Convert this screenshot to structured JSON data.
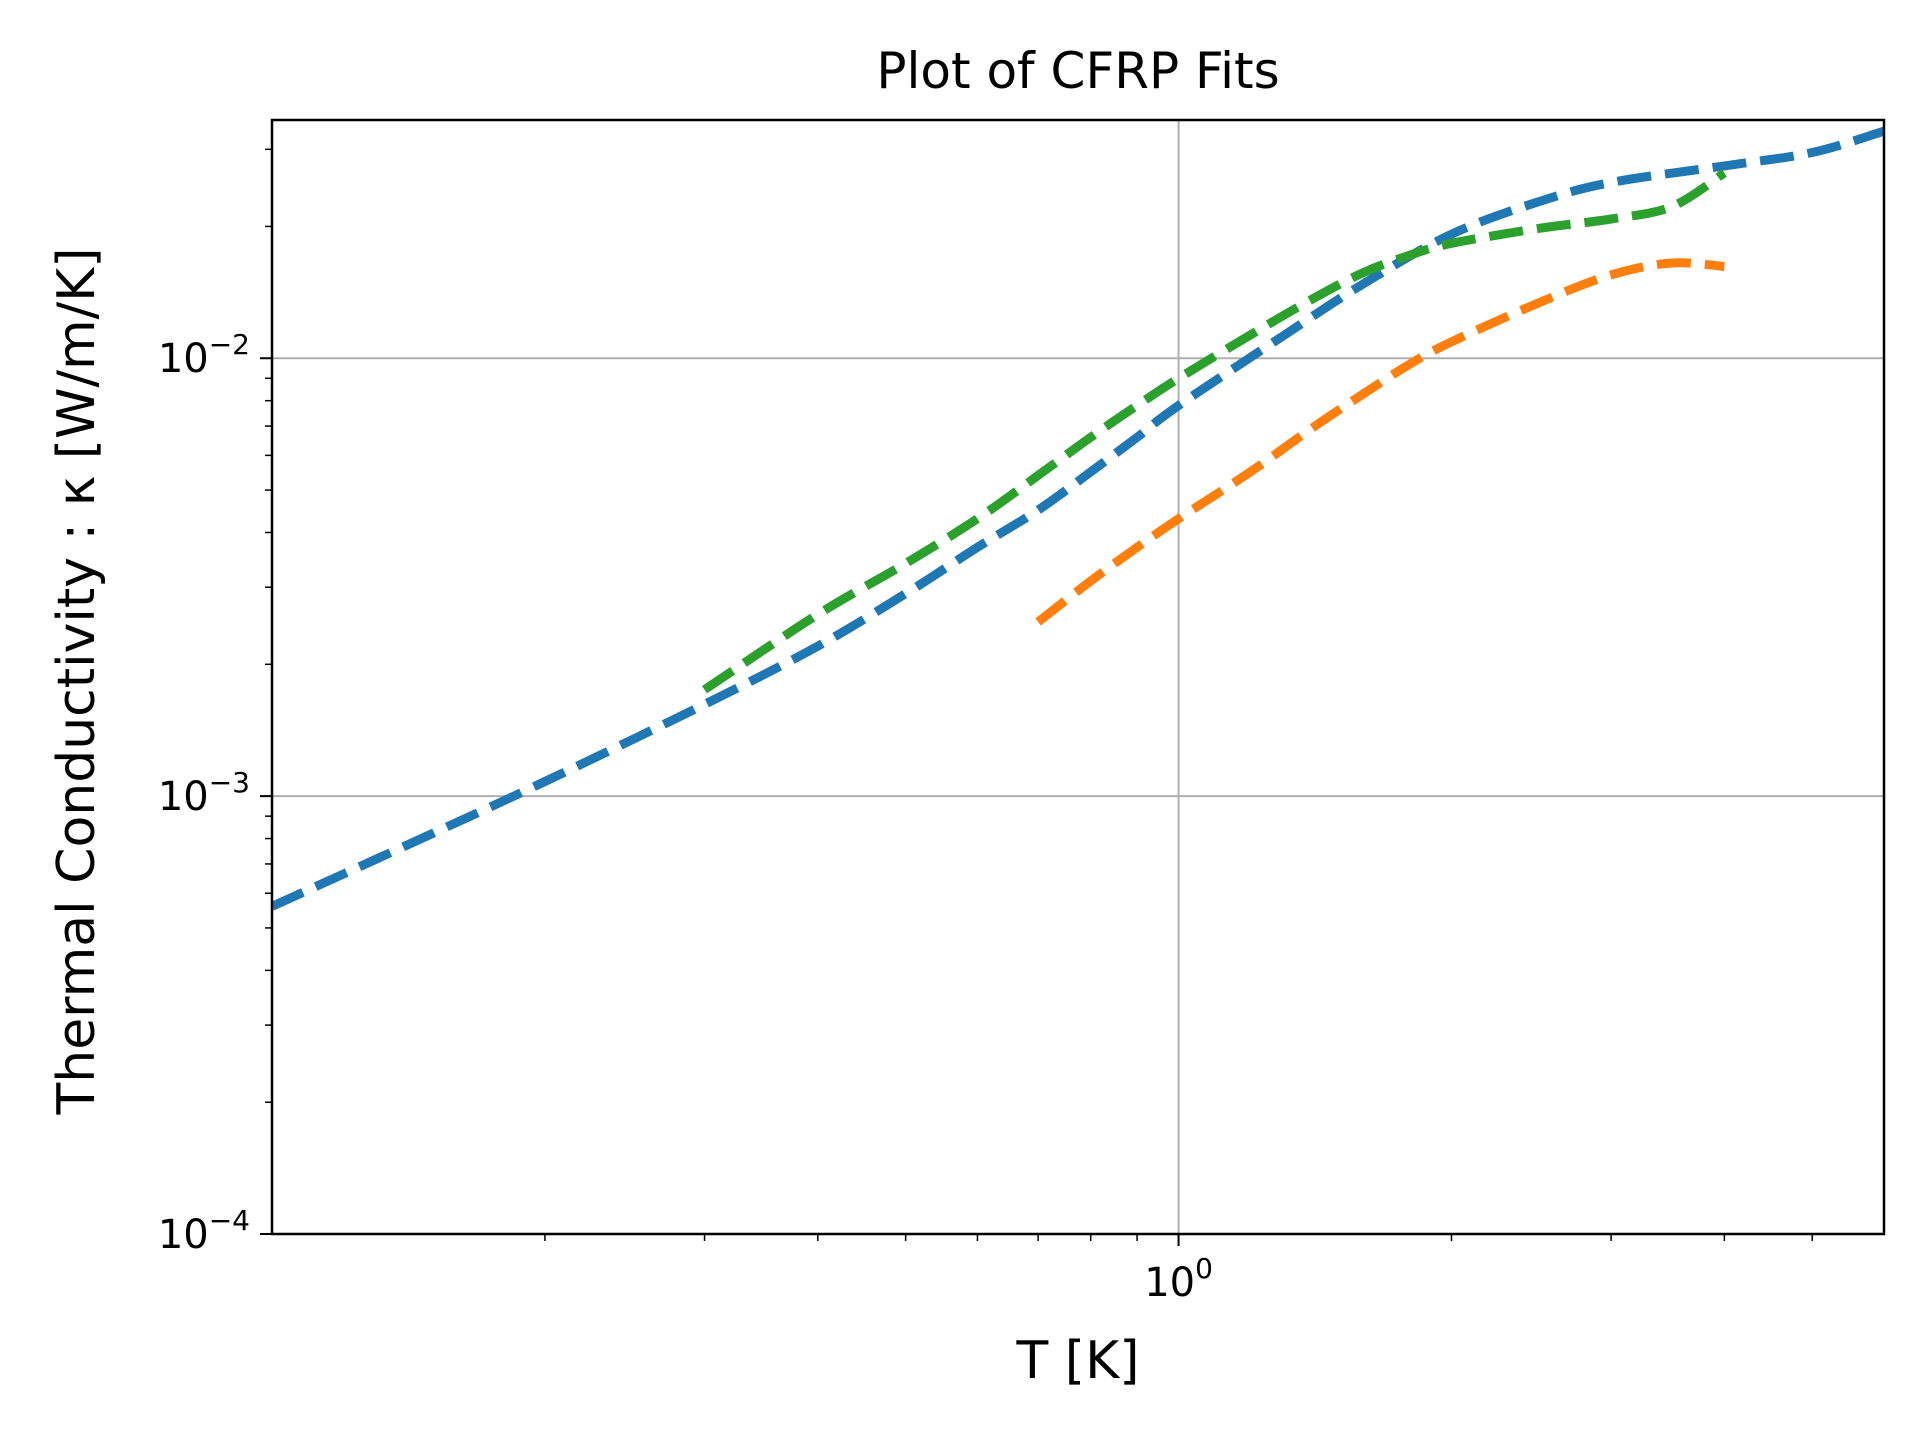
{
  "chart_data": {
    "type": "line",
    "title": "Plot of CFRP Fits",
    "xlabel": "T [K]",
    "ylabel": "Thermal Conductivity : κ [W/m/K]",
    "xscale": "log",
    "yscale": "log",
    "xlim": [
      0.1,
      6.0
    ],
    "ylim": [
      0.0001,
      0.035
    ],
    "grid": true,
    "legend": "none",
    "x_ticks": [
      {
        "value": 1.0,
        "base": "10",
        "exp": "0"
      }
    ],
    "y_ticks": [
      {
        "value": 0.0001,
        "base": "10",
        "exp": "−4"
      },
      {
        "value": 0.001,
        "base": "10",
        "exp": "−3"
      },
      {
        "value": 0.01,
        "base": "10",
        "exp": "−2"
      }
    ],
    "x_minor_ticks": [
      0.2,
      0.3,
      0.4,
      0.5,
      0.6,
      0.7,
      0.8,
      0.9,
      2,
      3,
      4,
      5
    ],
    "y_minor_ticks": [
      0.0002,
      0.0003,
      0.0004,
      0.0005,
      0.0006,
      0.0007,
      0.0008,
      0.0009,
      0.002,
      0.003,
      0.004,
      0.005,
      0.006,
      0.007,
      0.008,
      0.009,
      0.02,
      0.03
    ],
    "series": [
      {
        "color": "#1f77b4",
        "linestyle": "dashed",
        "x": [
          0.1,
          0.15,
          0.2,
          0.3,
          0.4,
          0.5,
          0.6,
          0.7,
          0.8,
          0.9,
          1.0,
          1.3,
          1.6,
          2.0,
          2.5,
          3.0,
          4.0,
          5.0,
          6.0
        ],
        "y": [
          0.00056,
          0.00082,
          0.00108,
          0.00162,
          0.0022,
          0.0029,
          0.0037,
          0.0045,
          0.0055,
          0.0066,
          0.0078,
          0.0112,
          0.0148,
          0.0192,
          0.0228,
          0.0252,
          0.0275,
          0.0295,
          0.033
        ]
      },
      {
        "color": "#ff7f0e",
        "linestyle": "dashed",
        "x": [
          0.7,
          0.8,
          0.9,
          1.0,
          1.2,
          1.4,
          1.6,
          1.8,
          2.0,
          2.5,
          3.0,
          3.5,
          4.0
        ],
        "y": [
          0.0025,
          0.0031,
          0.0037,
          0.0043,
          0.0055,
          0.0069,
          0.0083,
          0.0097,
          0.0109,
          0.0134,
          0.0155,
          0.0165,
          0.0162
        ]
      },
      {
        "color": "#2ca02c",
        "linestyle": "dashed",
        "x": [
          0.3,
          0.4,
          0.5,
          0.6,
          0.7,
          0.8,
          0.9,
          1.0,
          1.2,
          1.4,
          1.6,
          1.8,
          2.0,
          2.5,
          3.0,
          3.5,
          4.0
        ],
        "y": [
          0.00175,
          0.0026,
          0.0034,
          0.0043,
          0.0054,
          0.0066,
          0.0078,
          0.009,
          0.0113,
          0.0136,
          0.0157,
          0.0172,
          0.0183,
          0.0198,
          0.0208,
          0.0222,
          0.0265
        ]
      }
    ]
  }
}
